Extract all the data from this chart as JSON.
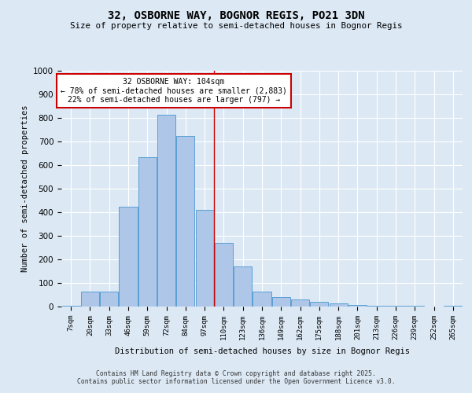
{
  "title": "32, OSBORNE WAY, BOGNOR REGIS, PO21 3DN",
  "subtitle": "Size of property relative to semi-detached houses in Bognor Regis",
  "xlabel": "Distribution of semi-detached houses by size in Bognor Regis",
  "ylabel": "Number of semi-detached properties",
  "categories": [
    "7sqm",
    "20sqm",
    "33sqm",
    "46sqm",
    "59sqm",
    "72sqm",
    "84sqm",
    "97sqm",
    "110sqm",
    "123sqm",
    "136sqm",
    "149sqm",
    "162sqm",
    "175sqm",
    "188sqm",
    "201sqm",
    "213sqm",
    "226sqm",
    "239sqm",
    "252sqm",
    "265sqm"
  ],
  "values": [
    5,
    65,
    65,
    425,
    635,
    815,
    725,
    410,
    270,
    170,
    65,
    40,
    30,
    20,
    15,
    8,
    5,
    4,
    2,
    1,
    3
  ],
  "bar_color": "#aec6e8",
  "bar_edge_color": "#5a9fd4",
  "vline_x": 7.5,
  "annotation_title": "32 OSBORNE WAY: 104sqm",
  "annotation_line1": "← 78% of semi-detached houses are smaller (2,883)",
  "annotation_line2": "22% of semi-detached houses are larger (797) →",
  "annotation_box_color": "#ffffff",
  "annotation_box_edge_color": "#cc0000",
  "vline_color": "#cc0000",
  "ylim": [
    0,
    1000
  ],
  "background_color": "#dce9f5",
  "grid_color": "#ffffff",
  "footer_line1": "Contains HM Land Registry data © Crown copyright and database right 2025.",
  "footer_line2": "Contains public sector information licensed under the Open Government Licence v3.0."
}
